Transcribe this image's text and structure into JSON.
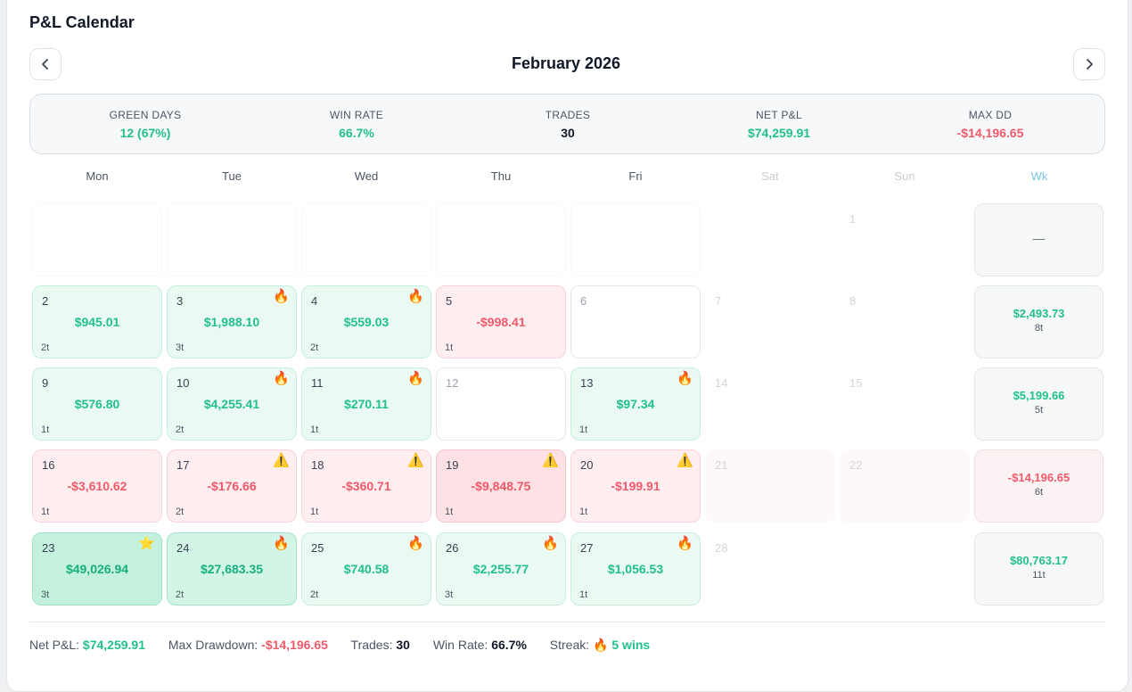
{
  "title": "P&L Calendar",
  "month_label": "February 2026",
  "summary": {
    "green_days_label": "GREEN DAYS",
    "green_days_value": "12 (67%)",
    "win_rate_label": "WIN RATE",
    "win_rate_value": "66.7%",
    "trades_label": "TRADES",
    "trades_value": "30",
    "net_pnl_label": "NET P&L",
    "net_pnl_value": "$74,259.91",
    "max_dd_label": "MAX DD",
    "max_dd_value": "-$14,196.65"
  },
  "weekdays": [
    "Mon",
    "Tue",
    "Wed",
    "Thu",
    "Fri",
    "Sat",
    "Sun",
    "Wk"
  ],
  "colors": {
    "green": "#22c08a",
    "red": "#f05a6a",
    "wk_header": "#7cc3e6"
  },
  "week1": {
    "sun_day": "1",
    "wk_total": "—"
  },
  "week2": {
    "days": [
      {
        "day": "2",
        "pnl": "$945.01",
        "trades": "2t"
      },
      {
        "day": "3",
        "pnl": "$1,988.10",
        "trades": "3t",
        "icon": "🔥"
      },
      {
        "day": "4",
        "pnl": "$559.03",
        "trades": "2t",
        "icon": "🔥"
      },
      {
        "day": "5",
        "pnl": "-$998.41",
        "trades": "1t"
      },
      {
        "day": "6"
      },
      {
        "day": "7"
      },
      {
        "day": "8"
      }
    ],
    "wk_total": "$2,493.73",
    "wk_trades": "8t"
  },
  "week3": {
    "days": [
      {
        "day": "9",
        "pnl": "$576.80",
        "trades": "1t"
      },
      {
        "day": "10",
        "pnl": "$4,255.41",
        "trades": "2t",
        "icon": "🔥"
      },
      {
        "day": "11",
        "pnl": "$270.11",
        "trades": "1t",
        "icon": "🔥"
      },
      {
        "day": "12"
      },
      {
        "day": "13",
        "pnl": "$97.34",
        "trades": "1t",
        "icon": "🔥"
      },
      {
        "day": "14"
      },
      {
        "day": "15"
      }
    ],
    "wk_total": "$5,199.66",
    "wk_trades": "5t"
  },
  "week4": {
    "days": [
      {
        "day": "16",
        "pnl": "-$3,610.62",
        "trades": "1t"
      },
      {
        "day": "17",
        "pnl": "-$176.66",
        "trades": "2t",
        "icon": "⚠️"
      },
      {
        "day": "18",
        "pnl": "-$360.71",
        "trades": "1t",
        "icon": "⚠️"
      },
      {
        "day": "19",
        "pnl": "-$9,848.75",
        "trades": "1t",
        "icon": "⚠️"
      },
      {
        "day": "20",
        "pnl": "-$199.91",
        "trades": "1t",
        "icon": "⚠️"
      },
      {
        "day": "21"
      },
      {
        "day": "22"
      }
    ],
    "wk_total": "-$14,196.65",
    "wk_trades": "6t"
  },
  "week5": {
    "days": [
      {
        "day": "23",
        "pnl": "$49,026.94",
        "trades": "3t",
        "icon": "⭐"
      },
      {
        "day": "24",
        "pnl": "$27,683.35",
        "trades": "2t",
        "icon": "🔥"
      },
      {
        "day": "25",
        "pnl": "$740.58",
        "trades": "2t",
        "icon": "🔥"
      },
      {
        "day": "26",
        "pnl": "$2,255.77",
        "trades": "3t",
        "icon": "🔥"
      },
      {
        "day": "27",
        "pnl": "$1,056.53",
        "trades": "1t",
        "icon": "🔥"
      },
      {
        "day": "28"
      }
    ],
    "wk_total": "$80,763.17",
    "wk_trades": "11t"
  },
  "footer": {
    "net_label": "Net P&L:",
    "net_value": "$74,259.91",
    "dd_label": "Max Drawdown:",
    "dd_value": "-$14,196.65",
    "trades_label": "Trades:",
    "trades_value": "30",
    "wr_label": "Win Rate:",
    "wr_value": "66.7%",
    "streak_label": "Streak:",
    "streak_icon": "🔥",
    "streak_value": "5 wins"
  }
}
